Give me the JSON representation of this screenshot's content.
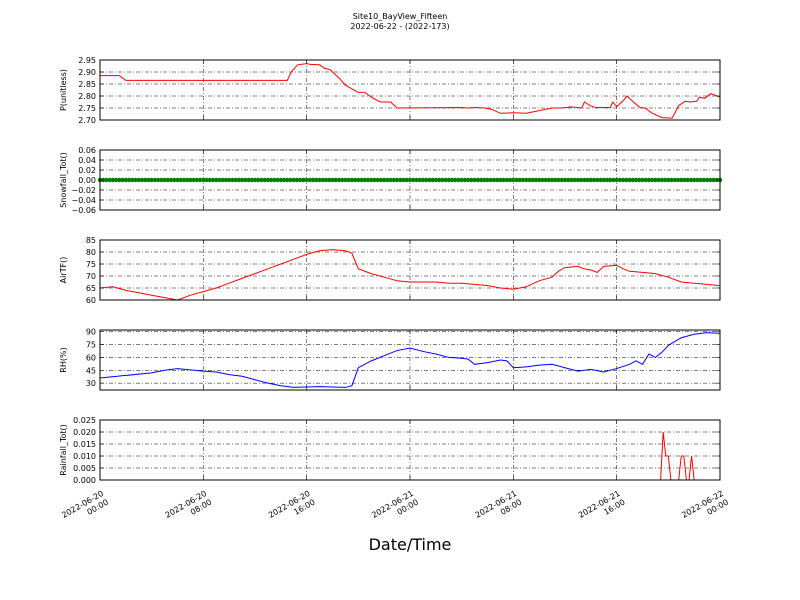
{
  "page": {
    "title_line1": "Site10_BayView_Fifteen",
    "title_line2": "2022-06-22 - (2022-173)",
    "xlabel": "Date/Time"
  },
  "x_ticks": [
    {
      "t": 0,
      "l1": "2022-06-20",
      "l2": "00:00"
    },
    {
      "t": 8,
      "l1": "2022-06-20",
      "l2": "08:00"
    },
    {
      "t": 16,
      "l1": "2022-06-20",
      "l2": "16:00"
    },
    {
      "t": 24,
      "l1": "2022-06-21",
      "l2": "00:00"
    },
    {
      "t": 32,
      "l1": "2022-06-21",
      "l2": "08:00"
    },
    {
      "t": 40,
      "l1": "2022-06-21",
      "l2": "16:00"
    },
    {
      "t": 48,
      "l1": "2022-06-22",
      "l2": "00:00"
    }
  ],
  "chart_data": [
    {
      "type": "line",
      "ylabel": "P(unitless)",
      "color": "#ff0000",
      "ylim": [
        2.7,
        2.95
      ],
      "yticks": [
        "2.95",
        "2.90",
        "2.85",
        "2.80",
        "2.75",
        "2.70"
      ],
      "ytick_values": [
        2.95,
        2.9,
        2.85,
        2.8,
        2.75,
        2.7
      ],
      "x": [
        0,
        1.5,
        2.0,
        14.5,
        14.8,
        15.3,
        16.0,
        16.3,
        17.0,
        17.4,
        17.8,
        18.2,
        18.6,
        19.0,
        20.0,
        20.5,
        21.0,
        21.7,
        22.5,
        23.0,
        28.0,
        28.5,
        29.0,
        29.8,
        30.3,
        31.0,
        32.0,
        33.0,
        35.0,
        35.6,
        36.2,
        36.4,
        37.3,
        37.5,
        38.0,
        38.4,
        39.5,
        39.7,
        40.0,
        40.5,
        40.8,
        41.3,
        41.8,
        42.2,
        42.7,
        43.5,
        44.3,
        44.8,
        45.3,
        45.7,
        46.2,
        46.4,
        46.8,
        47.3,
        48.0
      ],
      "y": [
        2.885,
        2.885,
        2.865,
        2.865,
        2.9,
        2.93,
        2.935,
        2.932,
        2.93,
        2.915,
        2.91,
        2.89,
        2.87,
        2.845,
        2.815,
        2.815,
        2.795,
        2.775,
        2.775,
        2.75,
        2.752,
        2.75,
        2.752,
        2.75,
        2.745,
        2.728,
        2.73,
        2.728,
        2.75,
        2.75,
        2.752,
        2.755,
        2.75,
        2.775,
        2.758,
        2.752,
        2.752,
        2.775,
        2.755,
        2.78,
        2.8,
        2.775,
        2.752,
        2.75,
        2.73,
        2.71,
        2.708,
        2.76,
        2.778,
        2.775,
        2.778,
        2.795,
        2.79,
        2.81,
        2.795
      ],
      "series": [
        {
          "name": "P(unitless)"
        }
      ]
    },
    {
      "type": "scatter",
      "ylabel": "Snowfall_Tot()",
      "color": "#008000",
      "ylim": [
        -0.06,
        0.06
      ],
      "yticks": [
        "0.06",
        "0.04",
        "0.02",
        "0.00",
        "−0.02",
        "−0.04",
        "−0.06"
      ],
      "ytick_values": [
        0.06,
        0.04,
        0.02,
        0.0,
        -0.02,
        -0.04,
        -0.06
      ],
      "x_start": 0,
      "x_end": 48,
      "x_step": 0.25,
      "value": 0.0
    },
    {
      "type": "line",
      "ylabel": "AirTF()",
      "color": "#ff0000",
      "ylim": [
        60,
        85
      ],
      "yticks": [
        "85",
        "80",
        "75",
        "70",
        "65",
        "60"
      ],
      "ytick_values": [
        85,
        80,
        75,
        70,
        65,
        60
      ],
      "x": [
        0,
        1.0,
        2.0,
        3.0,
        4.0,
        5.0,
        6.0,
        7.0,
        8.0,
        9.0,
        10.0,
        11.0,
        12.0,
        13.0,
        14.0,
        15.0,
        16.0,
        17.0,
        18.0,
        19.0,
        19.5,
        20.0,
        21.0,
        22.0,
        23.0,
        24.0,
        25.0,
        26.0,
        27.0,
        28.0,
        29.0,
        30.0,
        31.0,
        32.0,
        33.0,
        34.0,
        35.0,
        35.5,
        36.0,
        37.0,
        37.5,
        38.0,
        38.5,
        39.0,
        40.0,
        40.5,
        41.0,
        42.0,
        43.0,
        44.0,
        45.0,
        46.0,
        47.0,
        48.0
      ],
      "y": [
        65,
        65.5,
        64,
        63,
        62,
        61,
        60,
        62,
        63.5,
        65,
        67,
        69,
        71,
        73,
        75,
        77,
        79,
        80.5,
        81,
        80.5,
        79.5,
        73,
        71,
        69.5,
        68,
        67.5,
        67.5,
        67.5,
        67,
        67,
        66.5,
        66,
        65,
        64.5,
        65.5,
        68,
        69.5,
        72,
        73.5,
        74,
        73,
        72.5,
        71.5,
        74,
        74.5,
        73,
        72,
        71.5,
        71,
        69.5,
        67.5,
        67,
        66.5,
        66
      ],
      "series": [
        {
          "name": "AirTF()"
        }
      ]
    },
    {
      "type": "line",
      "ylabel": "RH(%)",
      "color": "#0000ff",
      "ylim": [
        22,
        92
      ],
      "yticks": [
        "90",
        "75",
        "60",
        "45",
        "30"
      ],
      "ytick_values": [
        90,
        75,
        60,
        45,
        30
      ],
      "x": [
        0,
        2.0,
        4.0,
        5.0,
        6.0,
        8.0,
        9.0,
        10.0,
        11.0,
        12.0,
        13.0,
        14.0,
        15.0,
        17.0,
        19.0,
        19.5,
        20.0,
        21.0,
        22.0,
        23.0,
        24.0,
        25.0,
        26.0,
        27.0,
        28.0,
        28.5,
        29.0,
        30.0,
        31.0,
        31.5,
        32.0,
        33.0,
        34.0,
        35.0,
        36.0,
        37.0,
        38.0,
        39.0,
        40.0,
        41.0,
        41.5,
        42.0,
        42.5,
        43.0,
        43.5,
        44.0,
        45.0,
        46.0,
        47.0,
        48.0
      ],
      "y": [
        36,
        39,
        42,
        45,
        47,
        44,
        43,
        40,
        38,
        34,
        30,
        27,
        25,
        26,
        25,
        27,
        48,
        56,
        62,
        68,
        71,
        67,
        64,
        60,
        59,
        58,
        52,
        54,
        57,
        56,
        48,
        49,
        51,
        52,
        48,
        44,
        46,
        43,
        47,
        52,
        56,
        52,
        64,
        60,
        66,
        74,
        83,
        87,
        89,
        88
      ],
      "series": [
        {
          "name": "RH(%)"
        }
      ]
    },
    {
      "type": "line",
      "ylabel": "Rainfall_Tot()",
      "color": "#ff0000",
      "ylim": [
        0,
        0.025
      ],
      "yticks": [
        "0.025",
        "0.020",
        "0.015",
        "0.010",
        "0.005",
        "0.000"
      ],
      "ytick_values": [
        0.025,
        0.02,
        0.015,
        0.01,
        0.005,
        0.0
      ],
      "x": [
        0,
        43.4,
        43.6,
        43.8,
        44.0,
        44.2,
        44.4,
        44.6,
        44.8,
        45.0,
        45.2,
        45.4,
        45.6,
        45.8,
        46.0,
        46.2,
        48.0
      ],
      "y": [
        0,
        0,
        0.02,
        0.01,
        0.01,
        0,
        0,
        0,
        0,
        0.01,
        0.01,
        0,
        0,
        0.01,
        0,
        0,
        0
      ],
      "series": [
        {
          "name": "Rainfall_Tot()"
        }
      ]
    }
  ]
}
